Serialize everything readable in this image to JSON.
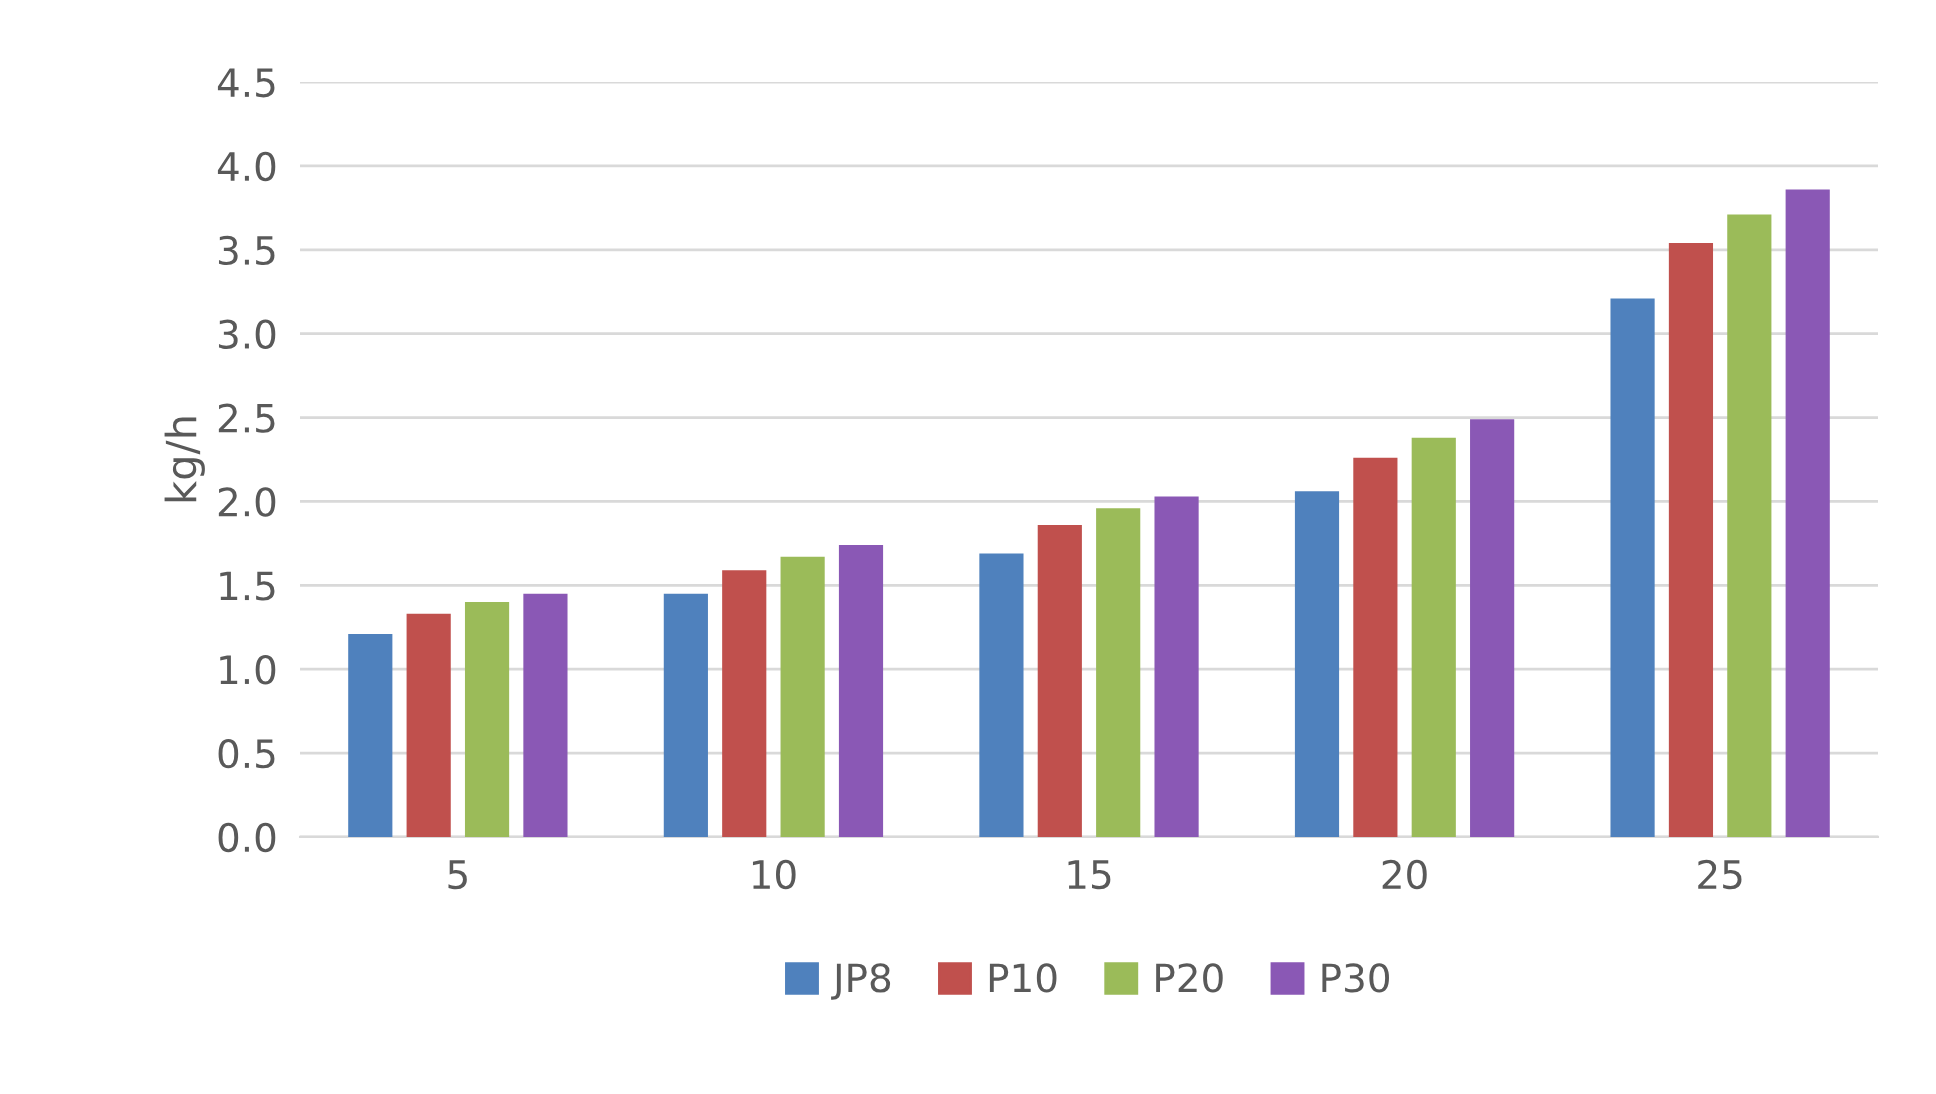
{
  "chart_data": {
    "type": "bar",
    "ylabel": "kg/h",
    "categories": [
      "5",
      "10",
      "15",
      "20",
      "25"
    ],
    "series": [
      {
        "name": "JP8",
        "color": "#4f81bd",
        "values": [
          1.21,
          1.45,
          1.69,
          2.06,
          3.21
        ]
      },
      {
        "name": "P10",
        "color": "#c0504d",
        "values": [
          1.33,
          1.59,
          1.86,
          2.26,
          3.54
        ]
      },
      {
        "name": "P20",
        "color": "#9bbb59",
        "values": [
          1.4,
          1.67,
          1.96,
          2.38,
          3.71
        ]
      },
      {
        "name": "P30",
        "color": "#8a58b5",
        "values": [
          1.45,
          1.74,
          2.03,
          2.49,
          3.86
        ]
      }
    ],
    "ylim": [
      0,
      4.5
    ],
    "yticks": [
      {
        "value": 0,
        "label": "0.0"
      },
      {
        "value": 0.5,
        "label": "0.5"
      },
      {
        "value": 1,
        "label": "1.0"
      },
      {
        "value": 1.5,
        "label": "1.5"
      },
      {
        "value": 2,
        "label": "2.0"
      },
      {
        "value": 2.5,
        "label": "2.5"
      },
      {
        "value": 3,
        "label": "3.0"
      },
      {
        "value": 3.5,
        "label": "3.5"
      },
      {
        "value": 4,
        "label": "4.0"
      },
      {
        "value": 4.5,
        "label": "4.5"
      }
    ],
    "grid": "y",
    "legend": "bottom"
  }
}
